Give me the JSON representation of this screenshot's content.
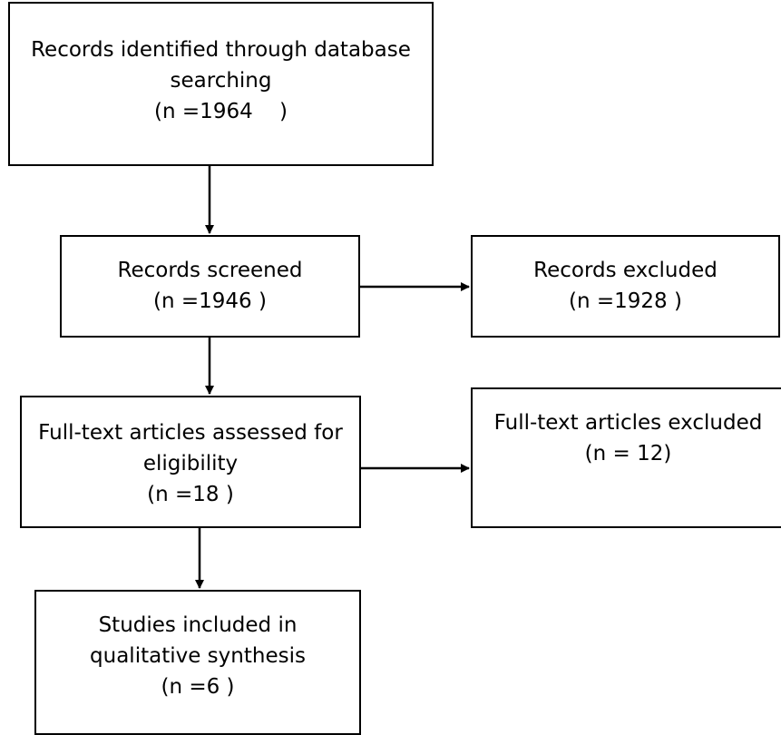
{
  "boxes": {
    "identified": {
      "line1": "Records identified through database",
      "line2": "searching",
      "line3": "(n =1964    )"
    },
    "screened": {
      "line1": "Records screened",
      "line2": "(n =1946 )"
    },
    "excluded": {
      "line1": "Records excluded",
      "line2": "(n =1928 )"
    },
    "fulltext": {
      "line1": "Full-text articles assessed for",
      "line2": "eligibility",
      "line3": "(n =18 )"
    },
    "fulltext_excluded": {
      "line1": "Full-text articles excluded",
      "line2": "(n = 12)"
    },
    "included": {
      "line1": "Studies included in",
      "line2": "qualitative synthesis",
      "line3": "(n =6 )"
    }
  },
  "colors": {
    "stroke": "#000000",
    "background": "#ffffff"
  }
}
